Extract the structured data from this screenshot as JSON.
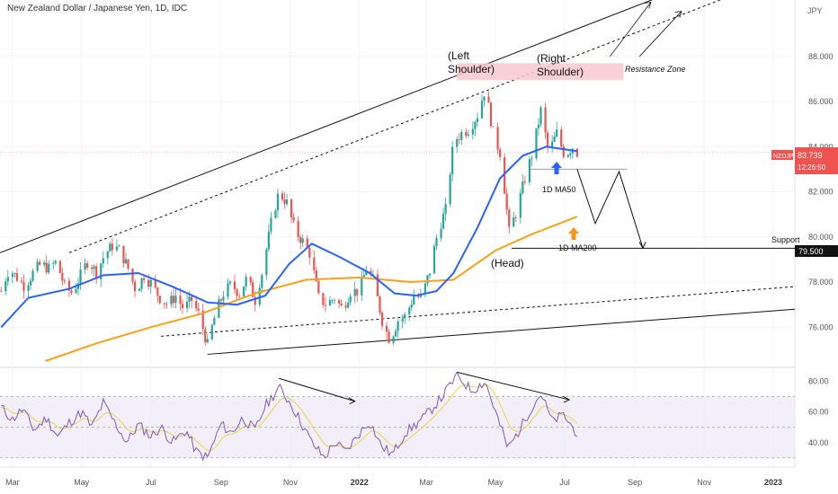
{
  "header": {
    "symbol_title": "New Zealand Dollar / Japanese Yen, 1D, IDC",
    "currency": "JPY"
  },
  "price_tag": {
    "symbol": "NZDJPY",
    "price": "83.739",
    "countdown": "12:26:50"
  },
  "support_tag": {
    "label": "Support",
    "value": "79.500"
  },
  "annotations": {
    "left_shoulder_1": "(Left",
    "left_shoulder_2": "Shoulder)",
    "right_shoulder_1": "(Right",
    "right_shoulder_2": "Shoulder)",
    "head": "(Head)",
    "resistance": "Resistance Zone",
    "ma50": "1D MA50",
    "ma200": "1D MA200"
  },
  "colors": {
    "up": "#26a69a",
    "down": "#ef5350",
    "ma50": "#2962ff",
    "ma200": "#f7a21b",
    "rsi": "#7e57c2",
    "rsi_ma": "#e6d34a",
    "resistance_zone": "#f8c8cc",
    "arrow_up_blue": "#2962ff",
    "arrow_up_orange": "#f7931a"
  },
  "chart_data": {
    "type": "candlestick",
    "price_axis": {
      "ylim": [
        74.3,
        90.5
      ],
      "ticks": [
        76.0,
        78.0,
        80.0,
        82.0,
        84.0,
        86.0,
        88.0
      ],
      "tick_labels": [
        "76.000",
        "78.000",
        "80.000",
        "82.000",
        "84.000",
        "86.000",
        "88.000"
      ]
    },
    "time_axis": {
      "labels": [
        "Mar",
        "May",
        "Jul",
        "Sep",
        "Nov",
        "2022",
        "Mar",
        "May",
        "Jul",
        "Sep",
        "Nov",
        "2023"
      ],
      "label_dates": [
        "2021-03",
        "2021-05",
        "2021-07",
        "2021-09",
        "2021-11",
        "2022-01",
        "2022-03",
        "2022-05",
        "2022-07",
        "2022-09",
        "2022-11",
        "2023-01"
      ],
      "xlim": [
        "2021-02-18",
        "2023-01-20"
      ]
    },
    "price_path": [
      [
        "2021-02-19",
        77.6
      ],
      [
        "2021-02-26",
        78.6
      ],
      [
        "2021-03-05",
        78.2
      ],
      [
        "2021-03-12",
        77.8
      ],
      [
        "2021-03-19",
        78.4
      ],
      [
        "2021-03-26",
        78.8
      ],
      [
        "2021-04-02",
        78.6
      ],
      [
        "2021-04-09",
        78.9
      ],
      [
        "2021-04-16",
        77.8
      ],
      [
        "2021-04-23",
        77.5
      ],
      [
        "2021-04-30",
        78.3
      ],
      [
        "2021-05-07",
        79.0
      ],
      [
        "2021-05-14",
        78.4
      ],
      [
        "2021-05-21",
        79.2
      ],
      [
        "2021-05-28",
        79.6
      ],
      [
        "2021-06-04",
        79.4
      ],
      [
        "2021-06-11",
        78.6
      ],
      [
        "2021-06-18",
        77.6
      ],
      [
        "2021-06-25",
        78.3
      ],
      [
        "2021-07-02",
        77.9
      ],
      [
        "2021-07-09",
        77.3
      ],
      [
        "2021-07-16",
        77.0
      ],
      [
        "2021-07-23",
        77.4
      ],
      [
        "2021-07-30",
        76.8
      ],
      [
        "2021-08-06",
        77.2
      ],
      [
        "2021-08-13",
        76.5
      ],
      [
        "2021-08-20",
        75.2
      ],
      [
        "2021-08-27",
        76.6
      ],
      [
        "2021-09-03",
        77.5
      ],
      [
        "2021-09-10",
        77.9
      ],
      [
        "2021-09-17",
        77.5
      ],
      [
        "2021-09-24",
        78.2
      ],
      [
        "2021-10-01",
        77.2
      ],
      [
        "2021-10-08",
        78.6
      ],
      [
        "2021-10-15",
        80.6
      ],
      [
        "2021-10-22",
        82.0
      ],
      [
        "2021-10-29",
        81.5
      ],
      [
        "2021-11-05",
        80.3
      ],
      [
        "2021-11-12",
        79.8
      ],
      [
        "2021-11-19",
        79.2
      ],
      [
        "2021-11-26",
        77.3
      ],
      [
        "2021-12-03",
        77.0
      ],
      [
        "2021-12-10",
        77.3
      ],
      [
        "2021-12-17",
        76.8
      ],
      [
        "2021-12-24",
        77.6
      ],
      [
        "2022-01-01",
        77.6
      ],
      [
        "2022-01-07",
        78.6
      ],
      [
        "2022-01-14",
        78.0
      ],
      [
        "2022-01-21",
        76.3
      ],
      [
        "2022-01-28",
        75.4
      ],
      [
        "2022-02-04",
        76.3
      ],
      [
        "2022-02-11",
        76.5
      ],
      [
        "2022-02-18",
        77.4
      ],
      [
        "2022-02-25",
        77.3
      ],
      [
        "2022-03-04",
        78.5
      ],
      [
        "2022-03-11",
        80.2
      ],
      [
        "2022-03-18",
        81.2
      ],
      [
        "2022-03-25",
        84.2
      ],
      [
        "2022-04-01",
        84.6
      ],
      [
        "2022-04-08",
        84.8
      ],
      [
        "2022-04-15",
        85.4
      ],
      [
        "2022-04-22",
        86.6
      ],
      [
        "2022-04-29",
        84.6
      ],
      [
        "2022-05-06",
        83.6
      ],
      [
        "2022-05-13",
        80.2
      ],
      [
        "2022-05-20",
        81.2
      ],
      [
        "2022-05-27",
        82.6
      ],
      [
        "2022-06-03",
        83.8
      ],
      [
        "2022-06-10",
        85.6
      ],
      [
        "2022-06-17",
        83.7
      ],
      [
        "2022-06-24",
        84.6
      ],
      [
        "2022-07-01",
        83.6
      ],
      [
        "2022-07-08",
        84.0
      ],
      [
        "2022-07-12",
        83.74
      ]
    ],
    "ma50": [
      [
        "2021-02-19",
        76.0
      ],
      [
        "2021-03-15",
        77.3
      ],
      [
        "2021-04-20",
        77.7
      ],
      [
        "2021-05-20",
        78.3
      ],
      [
        "2021-06-20",
        78.4
      ],
      [
        "2021-07-20",
        77.8
      ],
      [
        "2021-08-20",
        77.1
      ],
      [
        "2021-09-15",
        77.0
      ],
      [
        "2021-10-10",
        77.4
      ],
      [
        "2021-10-31",
        78.8
      ],
      [
        "2021-11-20",
        79.7
      ],
      [
        "2021-12-15",
        79.1
      ],
      [
        "2022-01-10",
        78.4
      ],
      [
        "2022-02-01",
        77.5
      ],
      [
        "2022-02-20",
        77.4
      ],
      [
        "2022-03-10",
        77.6
      ],
      [
        "2022-03-25",
        78.4
      ],
      [
        "2022-04-15",
        80.4
      ],
      [
        "2022-05-05",
        82.6
      ],
      [
        "2022-05-25",
        83.6
      ],
      [
        "2022-06-15",
        84.0
      ],
      [
        "2022-07-12",
        83.8
      ]
    ],
    "ma200": [
      [
        "2021-03-30",
        74.5
      ],
      [
        "2021-05-15",
        75.3
      ],
      [
        "2021-07-01",
        76.0
      ],
      [
        "2021-08-15",
        76.6
      ],
      [
        "2021-10-01",
        77.5
      ],
      [
        "2021-11-15",
        78.1
      ],
      [
        "2022-01-01",
        78.2
      ],
      [
        "2022-02-15",
        78.0
      ],
      [
        "2022-03-25",
        78.1
      ],
      [
        "2022-05-01",
        79.4
      ],
      [
        "2022-06-01",
        80.1
      ],
      [
        "2022-07-12",
        80.9
      ]
    ],
    "rsi": {
      "ylim": [
        24,
        88
      ],
      "ticks": [
        40,
        60,
        80
      ],
      "tick_labels": [
        "40.00",
        "60.00",
        "80.00"
      ],
      "band": [
        30,
        70
      ],
      "midline": 50,
      "values": [
        [
          "2021-02-19",
          63
        ],
        [
          "2021-03-01",
          55
        ],
        [
          "2021-03-10",
          62
        ],
        [
          "2021-03-20",
          48
        ],
        [
          "2021-03-31",
          56
        ],
        [
          "2021-04-10",
          44
        ],
        [
          "2021-04-20",
          53
        ],
        [
          "2021-05-01",
          60
        ],
        [
          "2021-05-10",
          50
        ],
        [
          "2021-05-20",
          66
        ],
        [
          "2021-05-31",
          52
        ],
        [
          "2021-06-10",
          40
        ],
        [
          "2021-06-20",
          52
        ],
        [
          "2021-07-01",
          44
        ],
        [
          "2021-07-10",
          50
        ],
        [
          "2021-07-20",
          40
        ],
        [
          "2021-08-01",
          48
        ],
        [
          "2021-08-10",
          34
        ],
        [
          "2021-08-20",
          30
        ],
        [
          "2021-09-01",
          52
        ],
        [
          "2021-09-10",
          46
        ],
        [
          "2021-09-20",
          56
        ],
        [
          "2021-10-01",
          48
        ],
        [
          "2021-10-10",
          64
        ],
        [
          "2021-10-22",
          76
        ],
        [
          "2021-11-01",
          66
        ],
        [
          "2021-11-10",
          54
        ],
        [
          "2021-11-20",
          40
        ],
        [
          "2021-12-01",
          30
        ],
        [
          "2021-12-10",
          40
        ],
        [
          "2021-12-20",
          34
        ],
        [
          "2022-01-01",
          46
        ],
        [
          "2022-01-10",
          54
        ],
        [
          "2022-01-20",
          38
        ],
        [
          "2022-01-30",
          32
        ],
        [
          "2022-02-10",
          46
        ],
        [
          "2022-02-20",
          52
        ],
        [
          "2022-03-01",
          58
        ],
        [
          "2022-03-15",
          70
        ],
        [
          "2022-03-28",
          84
        ],
        [
          "2022-04-10",
          74
        ],
        [
          "2022-04-22",
          80
        ],
        [
          "2022-05-01",
          60
        ],
        [
          "2022-05-12",
          36
        ],
        [
          "2022-05-22",
          48
        ],
        [
          "2022-06-01",
          62
        ],
        [
          "2022-06-10",
          72
        ],
        [
          "2022-06-20",
          54
        ],
        [
          "2022-06-30",
          58
        ],
        [
          "2022-07-06",
          52
        ],
        [
          "2022-07-12",
          46
        ]
      ]
    },
    "resistance_zone": {
      "x": [
        "2022-03-28",
        "2022-08-22"
      ],
      "y": [
        86.95,
        87.7
      ]
    },
    "support_line": {
      "x": [
        "2022-05-15",
        "2023-01-20"
      ],
      "y": 79.5
    }
  }
}
